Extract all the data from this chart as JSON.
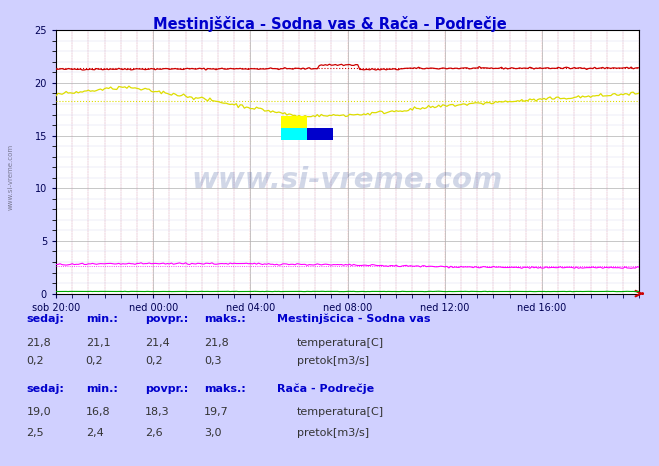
{
  "title": "Mestinjščica - Sodna vas & Rača - Podrečje",
  "title_color": "#0000cc",
  "bg_color": "#d0d0ff",
  "plot_bg_color": "#ffffff",
  "x_tick_labels": [
    "sob 20:00",
    "ned 00:00",
    "ned 04:00",
    "ned 08:00",
    "ned 12:00",
    "ned 16:00"
  ],
  "ylim": [
    0,
    25
  ],
  "yticks": [
    0,
    5,
    10,
    15,
    20,
    25
  ],
  "n_points": 289,
  "sodna_avg": 21.4,
  "raca_avg": 18.3,
  "sodna_pretok_avg": 0.2,
  "raca_pretok_avg": 2.6,
  "color_sodna_temp": "#cc0000",
  "color_sodna_pretok": "#00aa00",
  "color_raca_temp": "#dddd00",
  "color_raca_pretok": "#ff00ff",
  "watermark": "www.si-vreme.com",
  "watermark_color": "#1a3a8a",
  "legend1_title": "Mestinjšcica - Sodna vas",
  "legend2_title": "Rača - Podrečje",
  "col_headers": [
    "sedaj:",
    "min.:",
    "povpr.:",
    "maks.:"
  ],
  "sodna_temp_stats": [
    "21,8",
    "21,1",
    "21,4",
    "21,8"
  ],
  "sodna_pretok_stats": [
    "0,2",
    "0,2",
    "0,2",
    "0,3"
  ],
  "raca_temp_stats": [
    "19,0",
    "16,8",
    "18,3",
    "19,7"
  ],
  "raca_pretok_stats": [
    "2,5",
    "2,4",
    "2,6",
    "3,0"
  ],
  "label_temp": "temperatura[C]",
  "label_pretok": "pretok[m3/s]",
  "section1_title": "Mestinjšcica - Sodna vas",
  "section2_title": "Rača - Podrečje"
}
